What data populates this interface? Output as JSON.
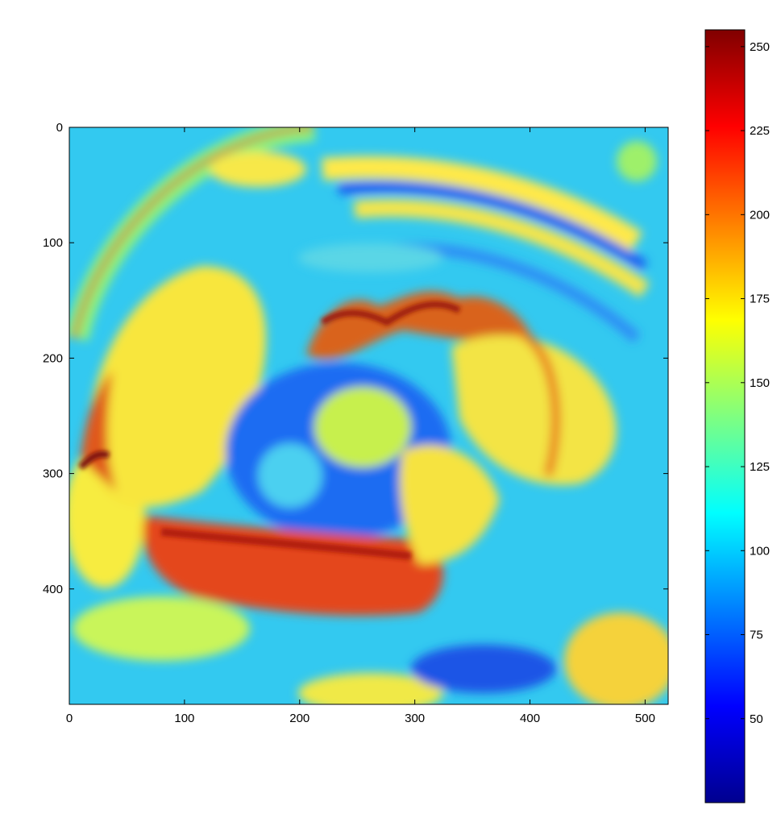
{
  "chart_data": {
    "type": "heatmap",
    "title": "",
    "xlabel": "",
    "ylabel": "",
    "colormap": "jet",
    "image_width_data": 520,
    "image_height_data": 500,
    "xlim": [
      0,
      520
    ],
    "ylim": [
      0,
      500
    ],
    "y_axis_direction": "top-to-bottom",
    "x_ticks": [
      0,
      100,
      200,
      300,
      400,
      500
    ],
    "y_ticks": [
      0,
      100,
      200,
      300,
      400
    ],
    "colorbar": {
      "range": [
        25,
        255
      ],
      "ticks": [
        50,
        75,
        100,
        125,
        150,
        175,
        200,
        225,
        250
      ],
      "position": "right"
    },
    "features": [
      {
        "description": "high-value ridge",
        "approx_region_x": [
          60,
          320
        ],
        "approx_region_y": [
          320,
          430
        ],
        "approx_value": 215
      },
      {
        "description": "high-value rim top",
        "approx_region_x": [
          210,
          350
        ],
        "approx_region_y": [
          150,
          210
        ],
        "approx_value": 210
      },
      {
        "description": "background",
        "approx_value": 110
      }
    ]
  }
}
